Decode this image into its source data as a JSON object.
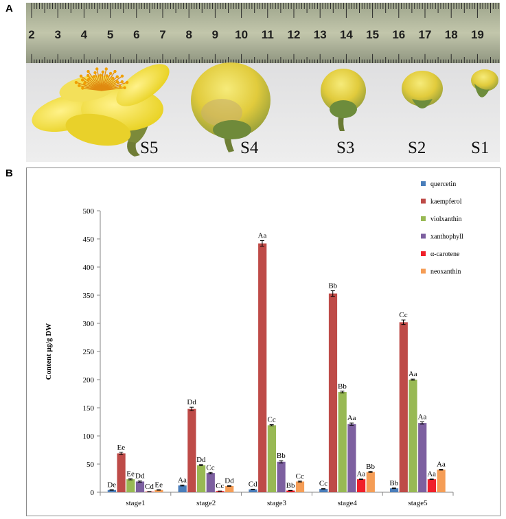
{
  "figure": {
    "panel_a_letter": "A",
    "panel_b_letter": "B"
  },
  "photo": {
    "ruler_numbers": [
      "2",
      "3",
      "4",
      "5",
      "6",
      "7",
      "8",
      "9",
      "10",
      "11",
      "12",
      "13",
      "14",
      "15",
      "16",
      "17",
      "18",
      "19"
    ],
    "stage_labels": [
      "S5",
      "S4",
      "S3",
      "S2",
      "S1"
    ]
  },
  "colors": {
    "quercetin": "#4a7ebb",
    "kaempferol": "#be4b48",
    "violxanthin": "#98b954",
    "xanthophyll": "#7d60a0",
    "alpha_carotene": "#f0202a",
    "neoxanthin": "#f59d56"
  },
  "chart_data": {
    "type": "bar",
    "title": "",
    "xlabel": "",
    "ylabel": "Content μg/g DW",
    "ylim": [
      0,
      500
    ],
    "yticks": [
      0,
      50,
      100,
      150,
      200,
      250,
      300,
      350,
      400,
      450,
      500
    ],
    "categories": [
      "stage1",
      "stage2",
      "stage3",
      "stage4",
      "stage5"
    ],
    "legend_position": "top-right",
    "grid": false,
    "series": [
      {
        "name": "quercetin",
        "color": "#4a7ebb",
        "values": [
          4,
          12,
          5,
          6,
          7
        ],
        "errors": [
          0.5,
          0.8,
          0.5,
          0.5,
          0.5
        ],
        "labels": [
          "De",
          "Aa",
          "Cd",
          "Cc",
          "Bb"
        ]
      },
      {
        "name": "kaempferol",
        "color": "#be4b48",
        "values": [
          69,
          148,
          442,
          353,
          302
        ],
        "errors": [
          2,
          3,
          5,
          5,
          4
        ],
        "labels": [
          "Ee",
          "Dd",
          "Aa",
          "Bb",
          "Cc"
        ]
      },
      {
        "name": "violxanthin",
        "color": "#98b954",
        "values": [
          23,
          48,
          119,
          178,
          200
        ],
        "errors": [
          1,
          1,
          1,
          1.5,
          1
        ],
        "labels": [
          "Ee",
          "Dd",
          "Cc",
          "Bb",
          "Aa"
        ]
      },
      {
        "name": "xanthophyll",
        "color": "#7d60a0",
        "values": [
          19,
          34,
          54,
          121,
          123
        ],
        "errors": [
          1,
          1,
          2,
          2,
          2
        ],
        "labels": [
          "Dd",
          "Cc",
          "Bb",
          "Aa",
          "Aa"
        ]
      },
      {
        "name": "α-carotene",
        "color": "#f0202a",
        "values": [
          1,
          2,
          3,
          23,
          23
        ],
        "errors": [
          0.2,
          0.2,
          0.3,
          0.5,
          0.5
        ],
        "labels": [
          "Cd",
          "Cc",
          "Bb",
          "Aa",
          "Aa"
        ]
      },
      {
        "name": "neoxanthin",
        "color": "#f59d56",
        "values": [
          4,
          11,
          19,
          36,
          40
        ],
        "errors": [
          0.4,
          0.5,
          0.8,
          0.8,
          0.8
        ],
        "labels": [
          "Ee",
          "Dd",
          "Cc",
          "Bb",
          "Aa"
        ]
      }
    ]
  }
}
